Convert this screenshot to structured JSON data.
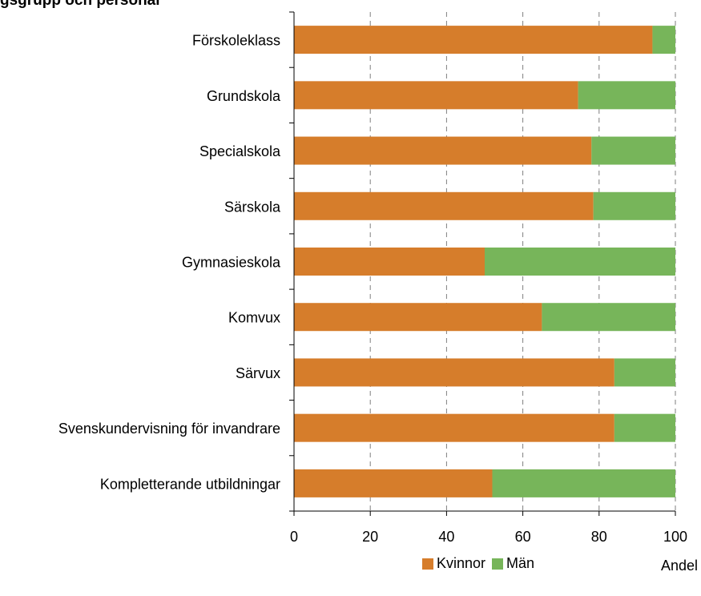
{
  "title": "gsgrupp och personal",
  "chart_data": {
    "type": "bar",
    "orientation": "horizontal",
    "stacked": true,
    "categories": [
      "Förskoleklass",
      "Grundskola",
      "Specialskola",
      "Särskola",
      "Gymnasieskola",
      "Komvux",
      "Särvux",
      "Svenskundervisning för invandrare",
      "Kompletterande utbildningar"
    ],
    "series": [
      {
        "name": "Kvinnor",
        "color": "#d67d2b",
        "values": [
          94,
          74.5,
          78,
          78.5,
          50,
          65,
          84,
          84,
          52
        ]
      },
      {
        "name": "Män",
        "color": "#77b55a",
        "values": [
          6,
          25.5,
          22,
          21.5,
          50,
          35,
          16,
          16,
          48
        ]
      }
    ],
    "xlabel": "Andel",
    "ylabel": "",
    "xlim": [
      0,
      100
    ],
    "xticks": [
      0,
      20,
      40,
      60,
      80,
      100
    ],
    "grid": "vertical dashed",
    "legend": "bottom"
  }
}
